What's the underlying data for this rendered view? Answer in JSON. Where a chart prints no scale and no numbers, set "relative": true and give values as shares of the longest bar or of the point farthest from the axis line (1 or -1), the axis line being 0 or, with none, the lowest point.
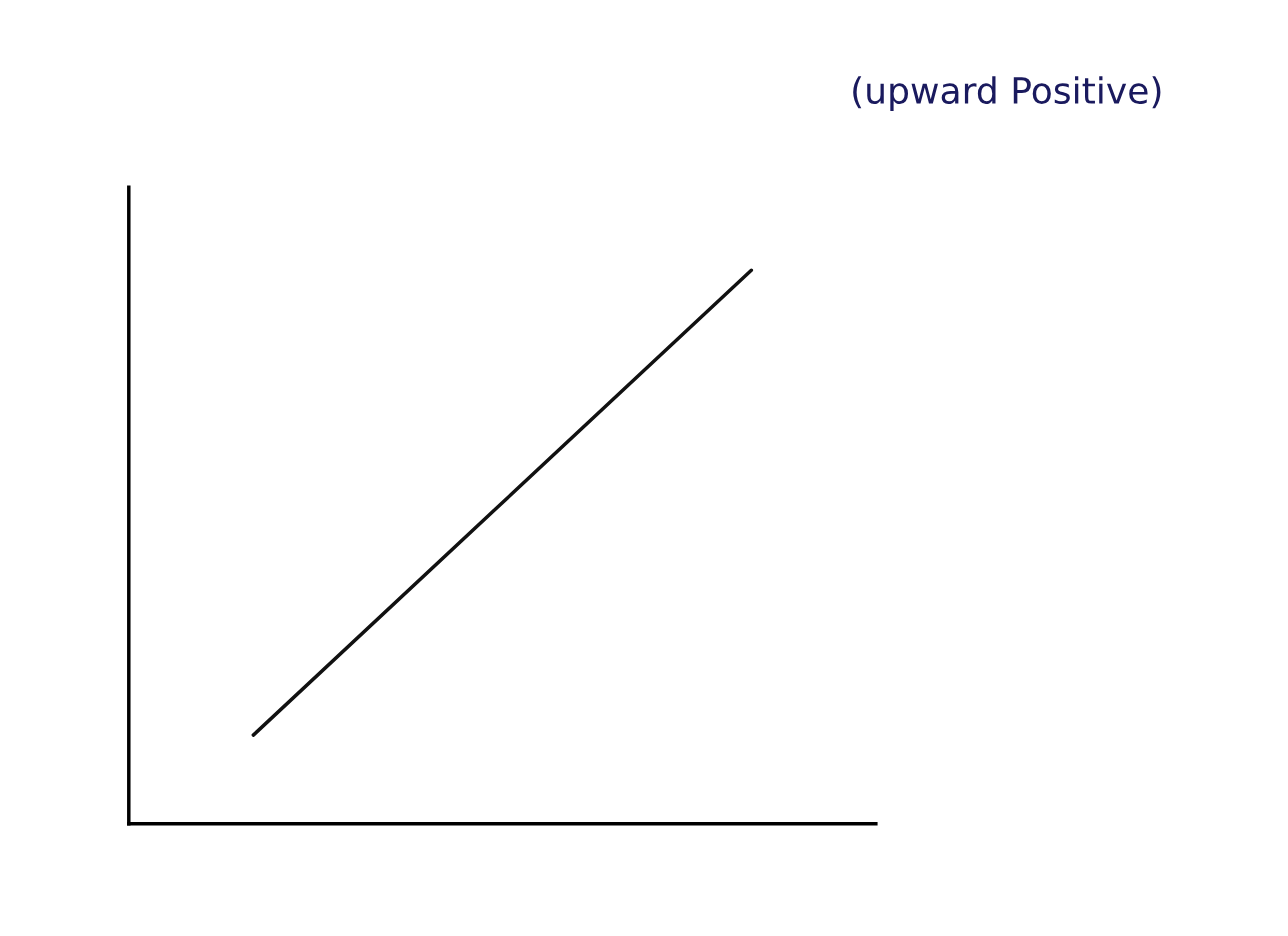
{
  "chart_data": {
    "type": "line",
    "relative": true,
    "categories": [
      null,
      null
    ],
    "series": [
      {
        "color": "#111111",
        "values": [
          0.16,
          1
        ]
      }
    ],
    "annotations": [
      "(upward Positive)"
    ],
    "grid": false,
    "legend": false,
    "marker": "none",
    "line_style": "solid"
  }
}
